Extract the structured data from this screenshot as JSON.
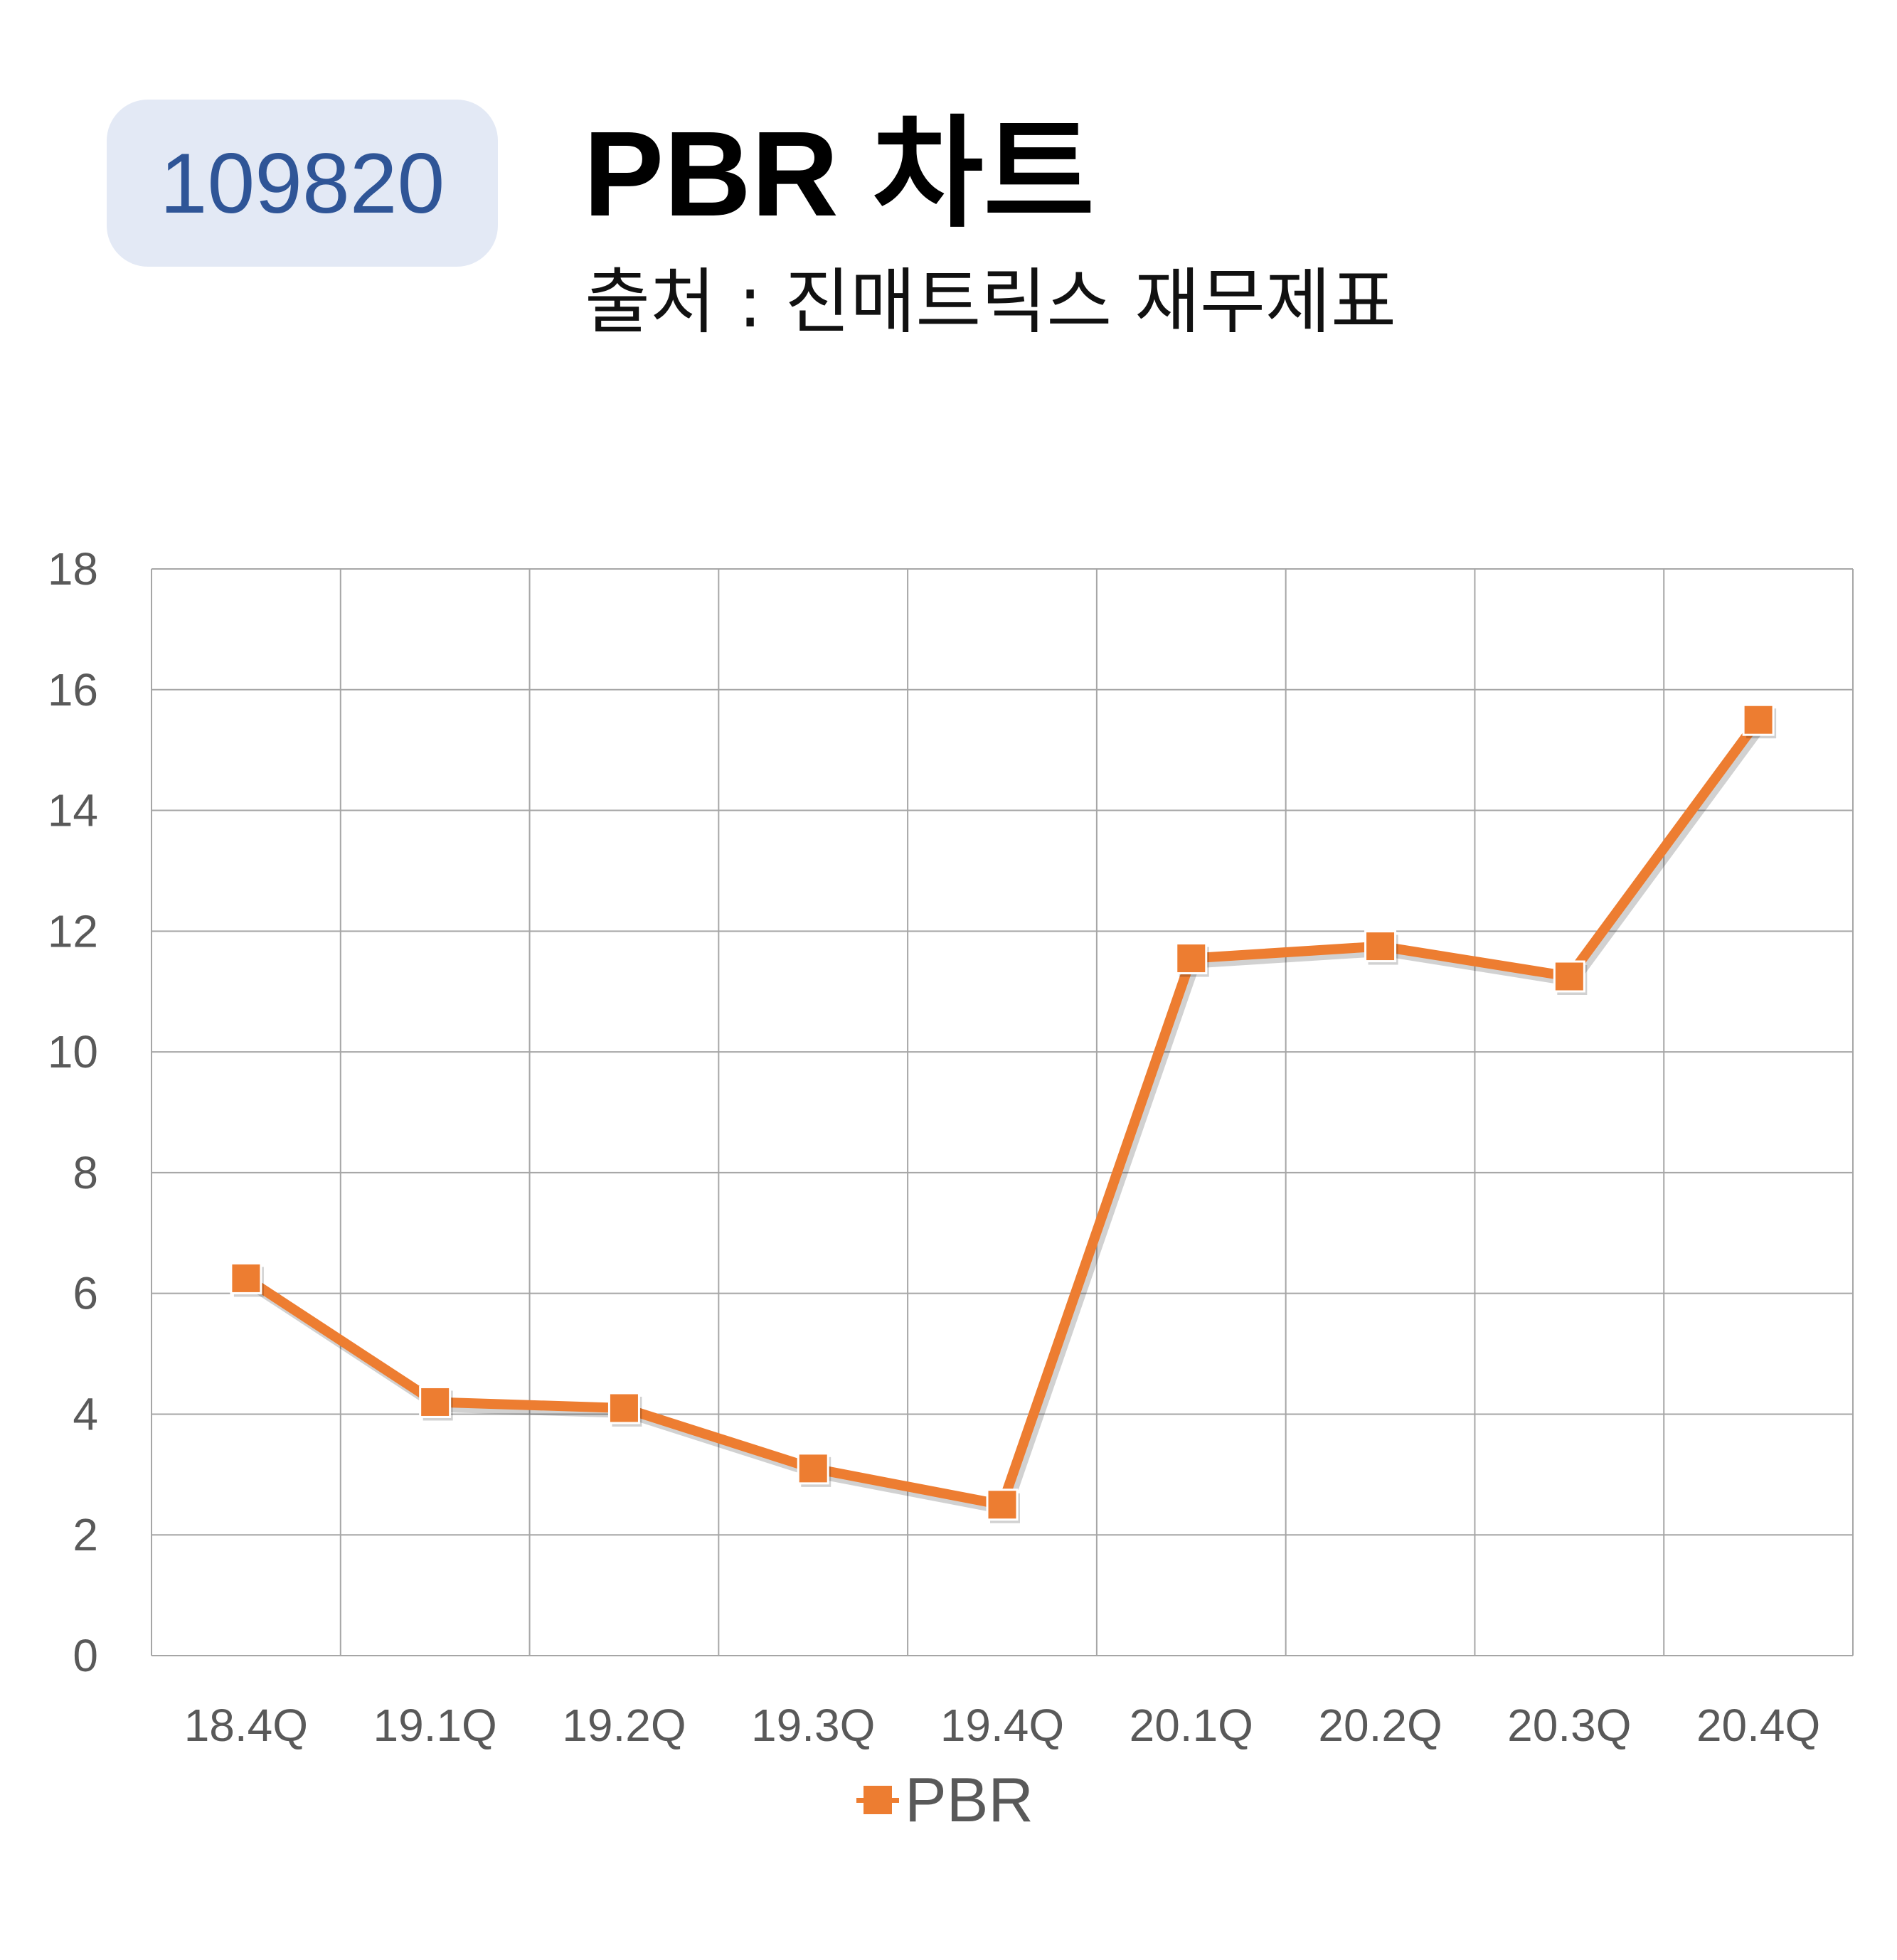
{
  "header": {
    "ticker": "109820",
    "title": "PBR 차트",
    "subtitle": "출처 : 진매트릭스 재무제표"
  },
  "colors": {
    "series": "#ED7D31",
    "grid": "#A6A6A6",
    "axis_text": "#595959",
    "badge_bg": "#E3E9F5",
    "badge_text": "#2F5597"
  },
  "chart_data": {
    "type": "line",
    "categories": [
      "18.4Q",
      "19.1Q",
      "19.2Q",
      "19.3Q",
      "19.4Q",
      "20.1Q",
      "20.2Q",
      "20.3Q",
      "20.4Q"
    ],
    "series": [
      {
        "name": "PBR",
        "values": [
          6.25,
          4.2,
          4.1,
          3.1,
          2.5,
          11.55,
          11.75,
          11.25,
          15.5
        ],
        "marker": "square"
      }
    ],
    "yticks": [
      "0",
      "2",
      "4",
      "6",
      "8",
      "10",
      "12",
      "14",
      "16",
      "18"
    ],
    "ylim": [
      0,
      18
    ],
    "grid": true,
    "legend_position": "bottom"
  }
}
